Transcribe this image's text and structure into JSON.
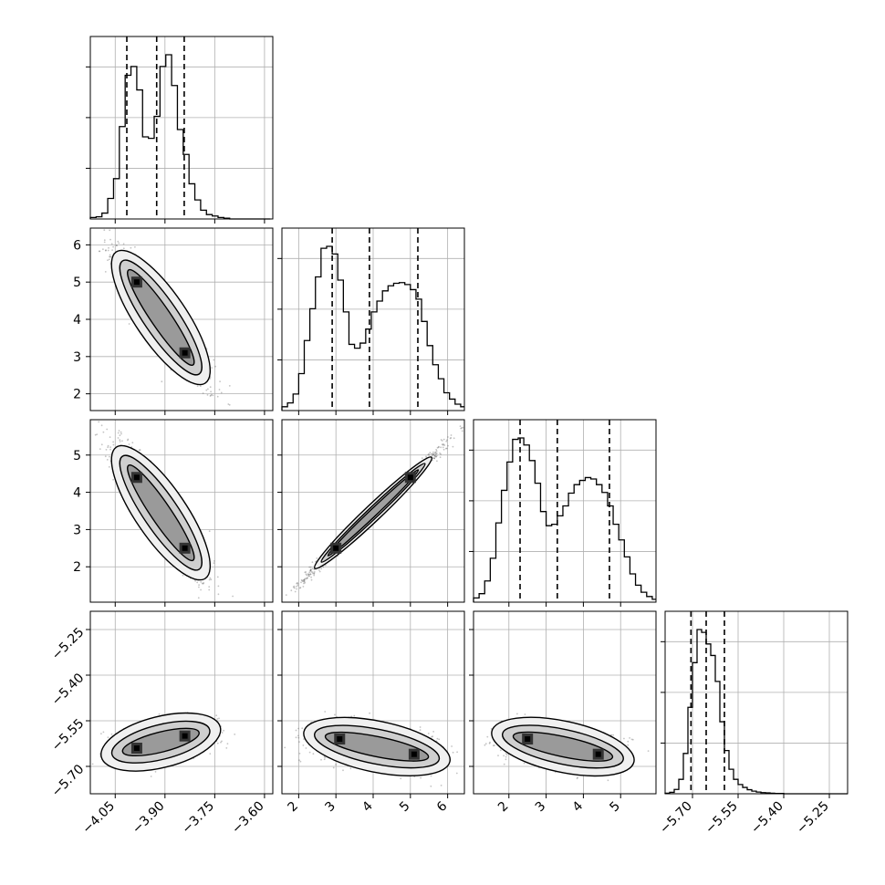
{
  "chart_data": {
    "type": "corner",
    "title": "",
    "parameters": [
      {
        "name": "",
        "range": [
          -4.125,
          -3.575
        ],
        "ticks": [
          -4.05,
          -3.9,
          -3.75,
          -3.6
        ],
        "tick_labels": [
          "−4.05",
          "−3.90",
          "−3.75",
          "−3.60"
        ]
      },
      {
        "name": "",
        "range": [
          1.55,
          6.45
        ],
        "ticks": [
          2,
          3,
          4,
          5,
          6
        ],
        "tick_labels": [
          "2",
          "3",
          "4",
          "5",
          "6"
        ]
      },
      {
        "name": "",
        "range": [
          1.05,
          5.95
        ],
        "ticks": [
          2,
          3,
          4,
          5
        ],
        "tick_labels": [
          "2",
          "3",
          "4",
          "5"
        ]
      },
      {
        "name": "",
        "range": [
          -5.79,
          -5.19
        ],
        "ticks": [
          -5.7,
          -5.55,
          -5.4,
          -5.25
        ],
        "tick_labels": [
          "−5.70",
          "−5.55",
          "−5.40",
          "−5.25"
        ]
      }
    ],
    "histograms": [
      {
        "parameter": 0,
        "bins": [
          -4.125,
          -4.1075,
          -4.09,
          -4.0725,
          -4.055,
          -4.0375,
          -4.02,
          -4.0025,
          -3.985,
          -3.9675,
          -3.95,
          -3.9325,
          -3.915,
          -3.8975,
          -3.88,
          -3.8625,
          -3.845,
          -3.8275,
          -3.81,
          -3.7925,
          -3.775,
          -3.7575,
          -3.74,
          -3.7225,
          -3.705,
          -3.6875,
          -3.67,
          -3.6525,
          -3.635,
          -3.6175,
          -3.6,
          -3.5825
        ],
        "counts": [
          2,
          3,
          8,
          28,
          55,
          126,
          196,
          208,
          176,
          112,
          110,
          140,
          208,
          224,
          182,
          122,
          88,
          48,
          26,
          12,
          6,
          4,
          2,
          1,
          0,
          0,
          0,
          0,
          0,
          0,
          0
        ],
        "quantiles": [
          -4.015,
          -3.925,
          -3.842
        ]
      },
      {
        "parameter": 1,
        "bins": [
          1.55,
          1.7,
          1.85,
          2.0,
          2.15,
          2.3,
          2.45,
          2.6,
          2.75,
          2.9,
          3.05,
          3.2,
          3.35,
          3.5,
          3.65,
          3.8,
          3.95,
          4.1,
          4.25,
          4.4,
          4.55,
          4.7,
          4.85,
          5.0,
          5.15,
          5.3,
          5.45,
          5.6,
          5.75,
          5.9,
          6.05,
          6.2,
          6.35,
          6.5
        ],
        "counts": [
          6,
          12,
          26,
          58,
          110,
          160,
          210,
          255,
          258,
          246,
          205,
          155,
          104,
          98,
          106,
          128,
          155,
          172,
          188,
          196,
          200,
          201,
          198,
          190,
          175,
          140,
          102,
          72,
          50,
          28,
          18,
          10,
          6
        ],
        "quantiles": [
          2.9,
          3.9,
          5.2
        ]
      },
      {
        "parameter": 2,
        "bins": [
          1.05,
          1.2,
          1.35,
          1.5,
          1.65,
          1.8,
          1.95,
          2.1,
          2.25,
          2.4,
          2.55,
          2.7,
          2.85,
          3.0,
          3.15,
          3.3,
          3.45,
          3.6,
          3.75,
          3.9,
          4.05,
          4.2,
          4.35,
          4.5,
          4.65,
          4.8,
          4.95,
          5.1,
          5.25,
          5.4,
          5.55,
          5.7,
          5.85,
          6.0
        ],
        "counts": [
          6,
          12,
          30,
          62,
          112,
          158,
          198,
          230,
          232,
          222,
          200,
          168,
          128,
          108,
          110,
          122,
          136,
          154,
          166,
          172,
          176,
          174,
          166,
          155,
          136,
          110,
          88,
          64,
          40,
          24,
          14,
          8,
          4
        ],
        "quantiles": [
          2.3,
          3.3,
          4.7
        ]
      },
      {
        "parameter": 3,
        "bins": [
          -5.79,
          -5.775,
          -5.76,
          -5.745,
          -5.73,
          -5.715,
          -5.7,
          -5.685,
          -5.67,
          -5.655,
          -5.64,
          -5.625,
          -5.61,
          -5.595,
          -5.58,
          -5.565,
          -5.55,
          -5.535,
          -5.52,
          -5.505,
          -5.49,
          -5.475,
          -5.46,
          -5.445,
          -5.43,
          -5.415,
          -5.4,
          -5.385,
          -5.37,
          -5.355,
          -5.34,
          -5.325,
          -5.31,
          -5.295,
          -5.28,
          -5.265,
          -5.25,
          -5.235,
          -5.22,
          -5.205,
          -5.19
        ],
        "counts": [
          2,
          5,
          15,
          50,
          140,
          300,
          455,
          570,
          560,
          520,
          480,
          390,
          250,
          150,
          85,
          50,
          32,
          22,
          14,
          9,
          6,
          4,
          3,
          2,
          1,
          1,
          0,
          0,
          0,
          0,
          0,
          0,
          0,
          0,
          0,
          0,
          0,
          0,
          0,
          0
        ],
        "quantiles": [
          -5.705,
          -5.655,
          -5.595
        ]
      }
    ],
    "joint": [
      {
        "x_param": 0,
        "y_param": 1,
        "modes": [
          {
            "x": -3.985,
            "y": 5.0
          },
          {
            "x": -3.84,
            "y": 3.1
          }
        ]
      },
      {
        "x_param": 0,
        "y_param": 2,
        "modes": [
          {
            "x": -3.985,
            "y": 4.4
          },
          {
            "x": -3.84,
            "y": 2.5
          }
        ]
      },
      {
        "x_param": 0,
        "y_param": 3,
        "modes": [
          {
            "x": -3.985,
            "y": -5.64
          },
          {
            "x": -3.84,
            "y": -5.6
          }
        ]
      },
      {
        "x_param": 1,
        "y_param": 2,
        "modes": [
          {
            "x": 3.0,
            "y": 2.5
          },
          {
            "x": 5.0,
            "y": 4.4
          }
        ]
      },
      {
        "x_param": 1,
        "y_param": 3,
        "modes": [
          {
            "x": 3.1,
            "y": -5.61
          },
          {
            "x": 5.1,
            "y": -5.66
          }
        ]
      },
      {
        "x_param": 2,
        "y_param": 3,
        "modes": [
          {
            "x": 2.5,
            "y": -5.61
          },
          {
            "x": 4.4,
            "y": -5.66
          }
        ]
      }
    ],
    "grid": true
  }
}
